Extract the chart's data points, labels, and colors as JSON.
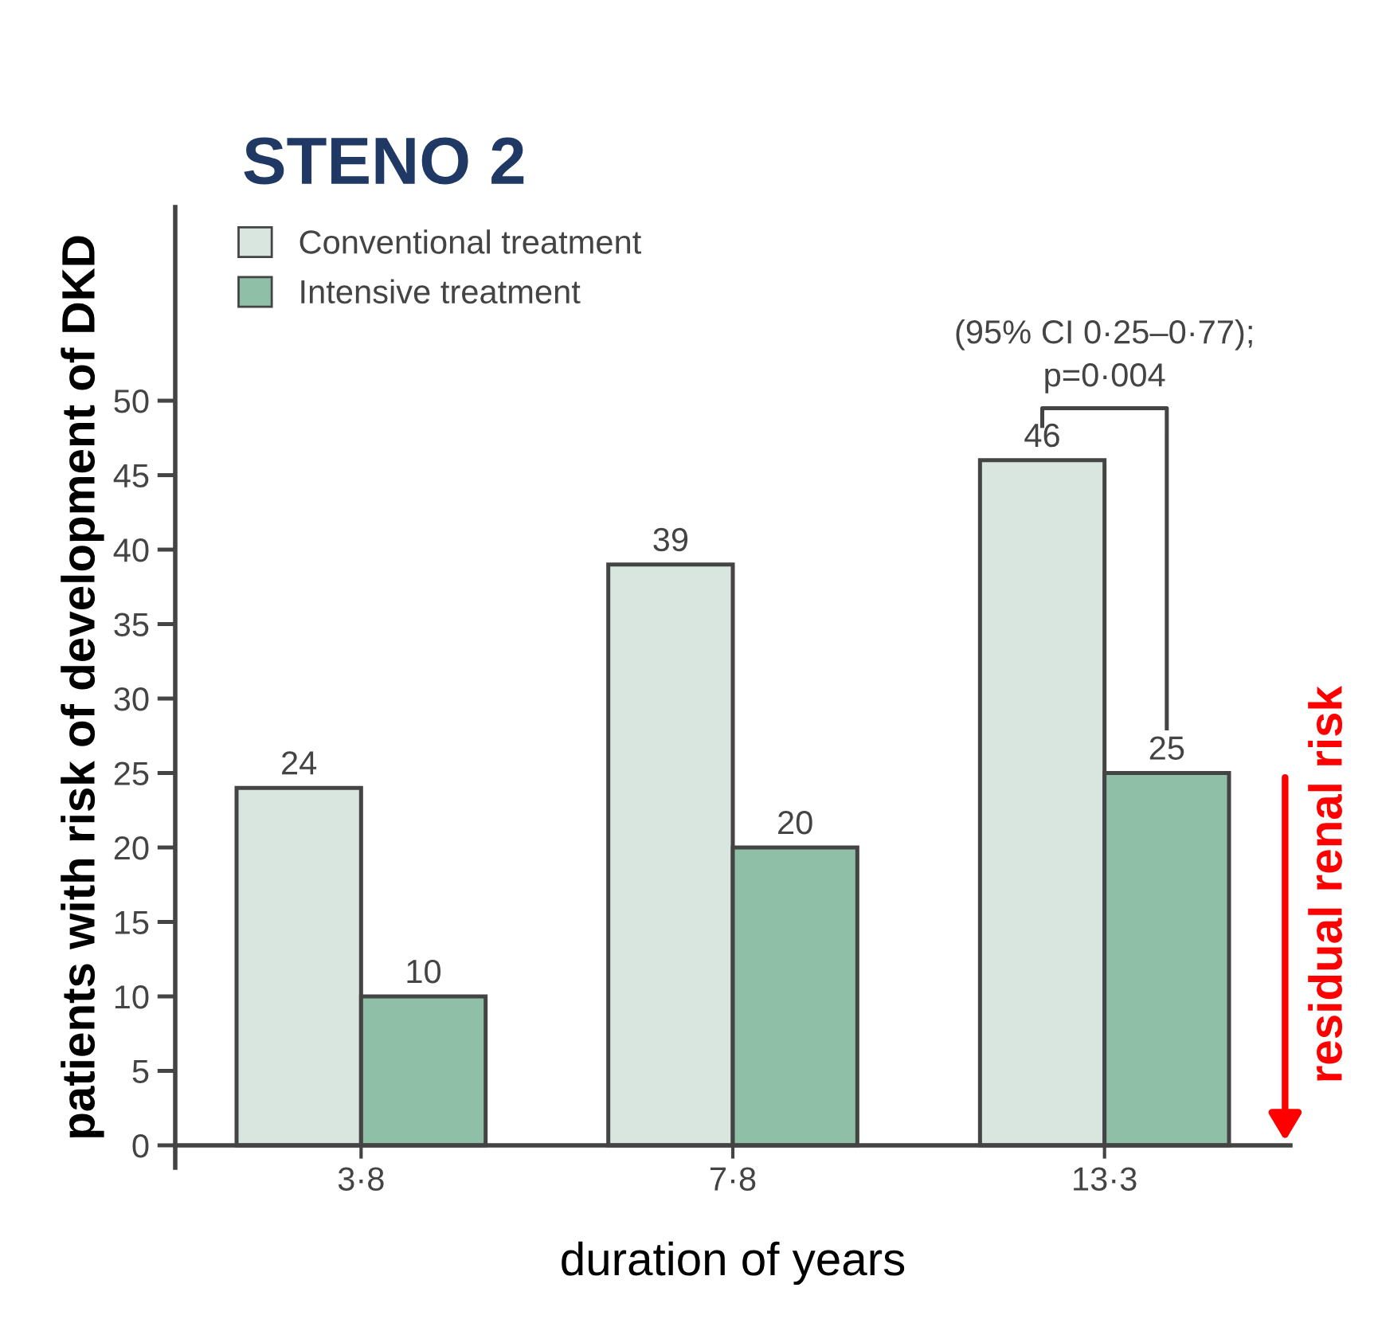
{
  "chart_data": {
    "type": "bar",
    "title": "STENO 2",
    "xlabel": "duration of years",
    "ylabel": "patients with risk of development of DKD",
    "categories": [
      "3·8",
      "7·8",
      "13·3"
    ],
    "series": [
      {
        "name": "Conventional treatment",
        "color": "#d9e6df",
        "values": [
          24,
          39,
          46
        ]
      },
      {
        "name": "Intensive treatment",
        "color": "#8fbfa6",
        "values": [
          10,
          20,
          25
        ]
      }
    ],
    "ylim": [
      -1.5,
      63
    ],
    "yticks": [
      0,
      5,
      10,
      15,
      20,
      25,
      30,
      35,
      40,
      45,
      50
    ],
    "data_labels": true,
    "legend": "top left",
    "grid": false,
    "annotations": [
      "(95% CI 0·25–0·77);\np=0·004",
      "residual renal risk"
    ]
  }
}
